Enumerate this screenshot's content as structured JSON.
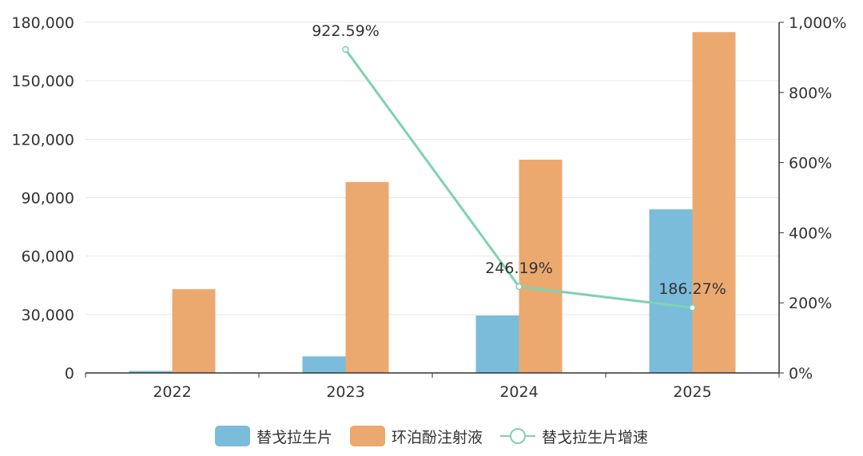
{
  "chart_data": {
    "type": "bar",
    "categories": [
      "2022",
      "2023",
      "2024",
      "2025"
    ],
    "series": [
      {
        "name": "替戈拉生片",
        "kind": "bar",
        "axis": "left",
        "values": [
          1000,
          8500,
          29500,
          84000
        ],
        "color": "#7bbcda"
      },
      {
        "name": "环泊酚注射液",
        "kind": "bar",
        "axis": "left",
        "values": [
          43000,
          98000,
          109500,
          175000
        ],
        "color": "#eca96f"
      },
      {
        "name": "替戈拉生片增速",
        "kind": "line",
        "axis": "right",
        "values": [
          null,
          922.59,
          246.19,
          186.27
        ],
        "labels": [
          "",
          "922.59%",
          "246.19%",
          "186.27%"
        ],
        "color": "#7fd2b0"
      }
    ],
    "y_left": {
      "ylim": [
        0,
        180000
      ],
      "ticks": [
        "0",
        "30,000",
        "60,000",
        "90,000",
        "120,000",
        "150,000",
        "180,000"
      ]
    },
    "y_right": {
      "ylim": [
        0,
        1000
      ],
      "ticks": [
        "0%",
        "200%",
        "400%",
        "600%",
        "800%",
        "1,000%"
      ]
    },
    "grid": true,
    "legend_position": "bottom"
  }
}
